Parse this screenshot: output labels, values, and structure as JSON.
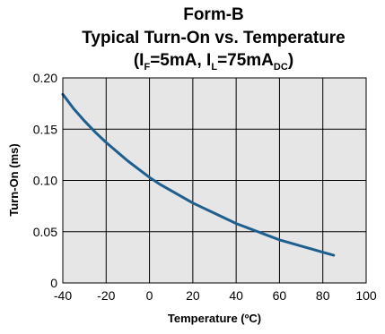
{
  "chart_data": {
    "type": "line",
    "title": "Form-B",
    "subtitle": "Typical Turn-On vs. Temperature",
    "conditions": {
      "open": "(I",
      "if_sub": "F",
      "if_val": "=5mA, I",
      "il_sub": "L",
      "il_val": "=75mA",
      "il_unit_sub": "DC",
      "close": ")"
    },
    "xlabel": "Temperature (ºC)",
    "ylabel": "Turn-On (ms)",
    "xlim": [
      -40,
      100
    ],
    "ylim": [
      0,
      0.2
    ],
    "x_ticks": [
      -40,
      -20,
      0,
      20,
      40,
      60,
      80,
      100
    ],
    "x_tick_labels": [
      "-40",
      "-20",
      "0",
      "20",
      "40",
      "60",
      "80",
      "100"
    ],
    "y_ticks": [
      0,
      0.05,
      0.1,
      0.15,
      0.2
    ],
    "y_tick_labels": [
      "0",
      "0.05",
      "0.10",
      "0.15",
      "0.20"
    ],
    "grid": true,
    "plot_background": "#e6e6e6",
    "line_color": "#1d5f8f",
    "series": [
      {
        "x": [
          -40,
          -35,
          -30,
          -25,
          -20,
          -15,
          -10,
          -5,
          0,
          5,
          10,
          15,
          20,
          25,
          30,
          35,
          40,
          45,
          50,
          55,
          60,
          65,
          70,
          75,
          80,
          85
        ],
        "y": [
          0.184,
          0.17,
          0.158,
          0.147,
          0.137,
          0.128,
          0.119,
          0.111,
          0.103,
          0.096,
          0.09,
          0.084,
          0.078,
          0.073,
          0.068,
          0.063,
          0.058,
          0.054,
          0.05,
          0.046,
          0.042,
          0.039,
          0.036,
          0.033,
          0.03,
          0.027
        ]
      }
    ]
  }
}
